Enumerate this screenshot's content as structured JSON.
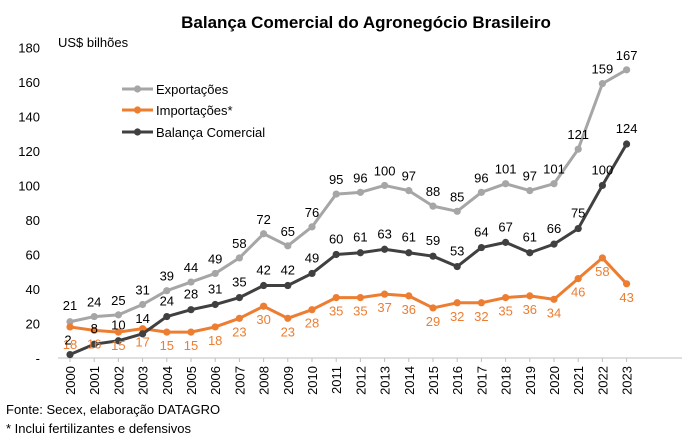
{
  "chart_data": {
    "type": "line",
    "title": "Balança Comercial do Agronegócio Brasileiro",
    "ylabel": "US$ bilhões",
    "xlabel": "",
    "ylim": [
      0,
      180
    ],
    "yticks": [
      "0",
      "20",
      "40",
      "60",
      "80",
      "100",
      "120",
      "140",
      "160",
      "180"
    ],
    "ytick_zero_label": "-",
    "grid": false,
    "legend_position": "top-left",
    "x": [
      "2000",
      "2001",
      "2002",
      "2003",
      "2004",
      "2005",
      "2006",
      "2007",
      "2008",
      "2009",
      "2010",
      "2011",
      "2012",
      "2013",
      "2014",
      "2015",
      "2016",
      "2017",
      "2018",
      "2019",
      "2020",
      "2021",
      "2022",
      "2023"
    ],
    "series": [
      {
        "name": "Exportações",
        "color": "#a6a6a6",
        "values": [
          21,
          24,
          25,
          31,
          39,
          44,
          49,
          58,
          72,
          65,
          76,
          95,
          96,
          100,
          97,
          88,
          85,
          96,
          101,
          97,
          101,
          121,
          159,
          167
        ]
      },
      {
        "name": "Importações*",
        "color": "#ed7d31",
        "values": [
          18,
          16,
          15,
          17,
          15,
          15,
          18,
          23,
          30,
          23,
          28,
          35,
          35,
          37,
          36,
          29,
          32,
          32,
          35,
          36,
          34,
          46,
          58,
          43
        ]
      },
      {
        "name": "Balança Comercial",
        "color": "#404040",
        "values": [
          2,
          8,
          10,
          14,
          24,
          28,
          31,
          35,
          42,
          42,
          49,
          60,
          61,
          63,
          61,
          59,
          53,
          64,
          67,
          61,
          66,
          75,
          100,
          124
        ]
      }
    ]
  },
  "footnotes": {
    "source": "Fonte: Secex, elaboração DATAGRO",
    "note": "* Inclui fertilizantes e defensivos"
  }
}
